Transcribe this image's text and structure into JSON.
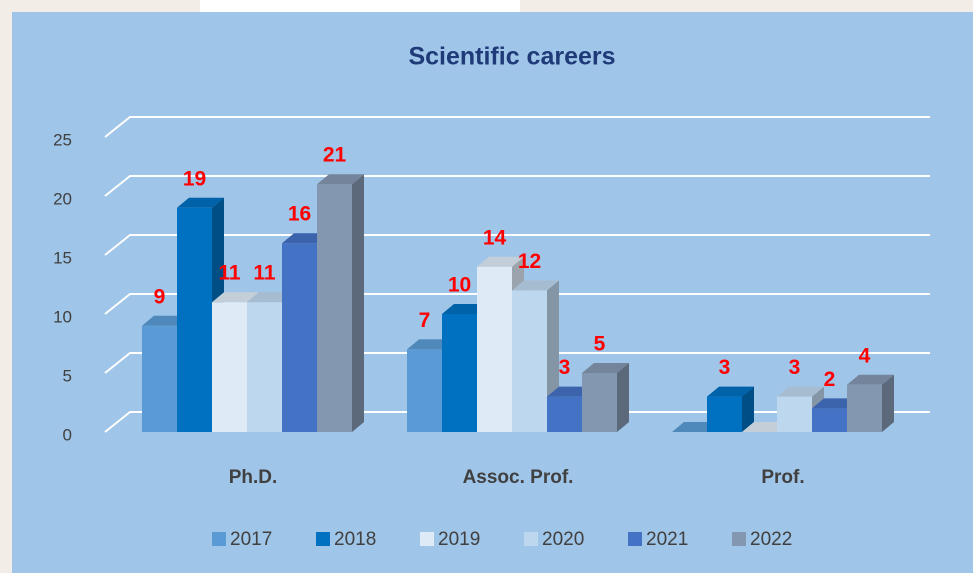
{
  "chart_data": {
    "type": "bar3d",
    "title": "Scientific careers",
    "categories": [
      "Ph.D.",
      "Assoc. Prof.",
      "Prof."
    ],
    "series": [
      {
        "name": "2017",
        "color": "#5b9bd5",
        "values": [
          9,
          7,
          0
        ],
        "value_labels": [
          "9",
          "7",
          null
        ]
      },
      {
        "name": "2018",
        "color": "#0070c0",
        "values": [
          19,
          10,
          3
        ]
      },
      {
        "name": "2019",
        "color": "#deebf7",
        "values": [
          11,
          14,
          0
        ],
        "value_labels": [
          "11",
          "14",
          null
        ]
      },
      {
        "name": "2020",
        "color": "#bdd7ee",
        "values": [
          11,
          12,
          3
        ]
      },
      {
        "name": "2021",
        "color": "#4472c4",
        "values": [
          16,
          3,
          2
        ]
      },
      {
        "name": "2022",
        "color": "#8497b0",
        "values": [
          21,
          5,
          4
        ]
      }
    ],
    "ylim": [
      0,
      25
    ],
    "yticks": [
      0,
      5,
      10,
      15,
      20,
      25
    ],
    "grid": true,
    "legend": "bottom"
  }
}
